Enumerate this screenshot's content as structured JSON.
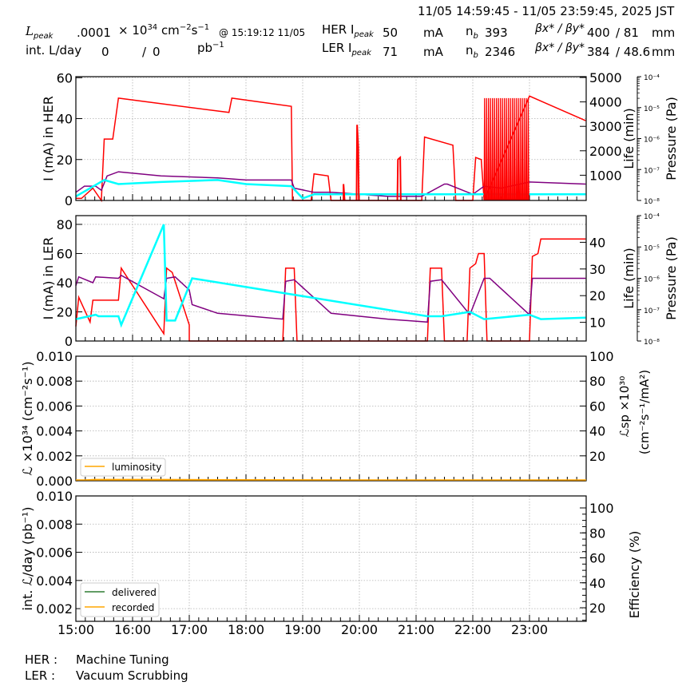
{
  "header": {
    "time_range": "11/05 14:59:45 - 11/05 23:59:45, 2025 JST",
    "lpeak_label": "L",
    "lpeak_sub": "peak",
    "lpeak_value": ".0001",
    "lpeak_unit_prefix": "× 10",
    "lpeak_unit_exp": "34",
    "lpeak_unit_cm": " cm",
    "lpeak_unit_cm_exp": "−2",
    "lpeak_unit_s": "s",
    "lpeak_unit_s_exp": "−1",
    "lpeak_time": "@ 15:19:12 11/05",
    "intl_label": "int. L/day",
    "intl_delivered": "0",
    "intl_sep": "/",
    "intl_recorded": "0",
    "intl_unit": "pb",
    "intl_unit_exp": "−1",
    "her": {
      "label": "HER I",
      "sub": "peak",
      "ipeak": "50",
      "unit": "mA",
      "nb_label": "n",
      "nb_sub": "b",
      "nb": "393",
      "beta_label": "βx* / βy*",
      "beta_x": "400",
      "beta_y": "/ 81",
      "beta_unit": "mm"
    },
    "ler": {
      "label": "LER I",
      "sub": "peak",
      "ipeak": "71",
      "unit": "mA",
      "nb_label": "n",
      "nb_sub": "b",
      "nb": "2346",
      "beta_label": "βx* / βy*",
      "beta_x": "384",
      "beta_y": "/ 48.6",
      "beta_unit": "mm"
    }
  },
  "footer": {
    "her_label": "HER :",
    "her_status": "Machine Tuning",
    "ler_label": "LER :",
    "ler_status": "Vacuum Scrubbing"
  },
  "colors": {
    "current": "#ff0000",
    "life": "#800080",
    "pressure": "#00ffff",
    "luminosity": "#ffa500",
    "delivered": "#2e7d32",
    "recorded": "#ffa500",
    "grid": "#b0b0b0"
  },
  "chart_data": [
    {
      "type": "line",
      "title": "HER",
      "x_ticks": [
        "15:00",
        "16:00",
        "17:00",
        "18:00",
        "19:00",
        "20:00",
        "21:00",
        "22:00",
        "23:00"
      ],
      "ylabel": "I (mA) in HER",
      "ylim": [
        0,
        60
      ],
      "yticks": [
        0,
        20,
        40,
        60
      ],
      "y2label": "Life (min)",
      "y2ticks": [
        1000,
        2000,
        3000,
        4000,
        5000
      ],
      "y3label": "Pressure (Pa)",
      "y3ticks": [
        "10^-8",
        "10^-7",
        "10^-6",
        "10^-5",
        "10^-4"
      ],
      "grid": true,
      "series": [
        {
          "name": "current",
          "color": "#ff0000",
          "x": [
            15.0,
            15.1,
            15.3,
            15.45,
            15.5,
            15.65,
            15.75,
            17.7,
            17.75,
            18.8,
            18.82,
            19.15,
            19.2,
            19.45,
            19.5,
            20.0,
            20.0,
            21.1,
            21.15,
            21.65,
            21.7,
            22.0,
            22.05,
            22.15,
            22.2,
            23.0,
            23.99
          ],
          "y": [
            1,
            1,
            6,
            0,
            30,
            30,
            50,
            43,
            50,
            46,
            0,
            0,
            13,
            12,
            0,
            0,
            0,
            0,
            31,
            27,
            0,
            0,
            21,
            20,
            0,
            51,
            39
          ]
        },
        {
          "name": "life",
          "color": "#800080",
          "x": [
            15.0,
            15.15,
            15.35,
            15.45,
            15.55,
            15.75,
            16.5,
            17.5,
            18.0,
            18.8,
            18.85,
            19.2,
            19.5,
            20.0,
            20.5,
            21.1,
            21.5,
            21.55,
            22.0,
            22.2,
            22.5,
            23.0,
            23.99
          ],
          "y": [
            4,
            7,
            7,
            5,
            12,
            14,
            12,
            11,
            10,
            10,
            6,
            4,
            4,
            3,
            2,
            2,
            8,
            8,
            3,
            7,
            6,
            9,
            8
          ]
        },
        {
          "name": "pressure",
          "color": "#00ffff",
          "x": [
            15.0,
            15.5,
            15.75,
            16.5,
            17.5,
            18.0,
            18.8,
            19.0,
            19.2,
            20.0,
            21.0,
            21.5,
            22.0,
            22.5,
            23.0,
            23.99
          ],
          "y": [
            2,
            10,
            8,
            9,
            10,
            8,
            7,
            1,
            3,
            3,
            3,
            3,
            3,
            3,
            3,
            3
          ]
        }
      ]
    },
    {
      "type": "line",
      "title": "LER",
      "ylabel": "I (mA) in LER",
      "ylim": [
        0,
        86
      ],
      "yticks": [
        0,
        20,
        40,
        60,
        80
      ],
      "y2label": "Life (min)",
      "y2ticks": [
        10,
        20,
        30,
        40
      ],
      "y3label": "Pressure (Pa)",
      "y3ticks": [
        "10^-8",
        "10^-7",
        "10^-6",
        "10^-5",
        "10^-4"
      ],
      "grid": true,
      "series": [
        {
          "name": "current",
          "color": "#ff0000",
          "x": [
            15.0,
            15.05,
            15.25,
            15.3,
            15.75,
            15.8,
            16.55,
            16.6,
            16.7,
            17.0,
            17.0,
            18.65,
            18.7,
            18.85,
            18.9,
            21.2,
            21.25,
            21.45,
            21.5,
            21.9,
            21.95,
            22.05,
            22.1,
            22.2,
            22.25,
            23.0,
            23.05,
            23.15,
            23.2,
            23.99
          ],
          "y": [
            10,
            30,
            13,
            28,
            28,
            50,
            5,
            50,
            47,
            11,
            0,
            0,
            50,
            50,
            0,
            0,
            50,
            50,
            0,
            0,
            50,
            53,
            60,
            60,
            0,
            0,
            58,
            60,
            70,
            70
          ]
        },
        {
          "name": "life",
          "color": "#800080",
          "x": [
            15.0,
            15.05,
            15.3,
            15.35,
            15.75,
            15.8,
            16.55,
            16.6,
            16.75,
            17.0,
            17.05,
            17.5,
            18.65,
            18.7,
            18.85,
            19.5,
            20.5,
            21.2,
            21.25,
            21.45,
            21.95,
            22.2,
            22.3,
            23.0,
            23.05,
            23.99
          ],
          "y": [
            38,
            44,
            40,
            44,
            43,
            45,
            29,
            43,
            44,
            35,
            25,
            19,
            15,
            41,
            42,
            19,
            15,
            13,
            41,
            42,
            18,
            43,
            43,
            18,
            43,
            43
          ]
        },
        {
          "name": "pressure",
          "color": "#00ffff",
          "x": [
            15.0,
            15.35,
            15.4,
            15.75,
            15.8,
            16.55,
            16.6,
            16.75,
            17.05,
            21.2,
            21.45,
            21.95,
            22.2,
            23.0,
            23.2,
            23.99
          ],
          "y": [
            15,
            18,
            17,
            17,
            11,
            80,
            14,
            14,
            43,
            17,
            17,
            20,
            15,
            18,
            15,
            16
          ]
        }
      ]
    },
    {
      "type": "line",
      "ylabel": "L ×10^34 (cm^-2 s^-1)",
      "ylim": [
        0,
        0.01
      ],
      "yticks": [
        0.0,
        0.002,
        0.004,
        0.006,
        0.008,
        0.01
      ],
      "y2label": "Lsp ×10^30 (cm^-2 s^-1 / mA^2)",
      "y2ticks": [
        20,
        40,
        60,
        80,
        100
      ],
      "legend": [
        "luminosity"
      ],
      "legend_position": "lower left",
      "grid": true,
      "series": [
        {
          "name": "luminosity",
          "color": "#ffa500",
          "x": [
            15.0,
            15.32,
            16.42,
            23.99
          ],
          "y": [
            0.0,
            0.0001,
            0.0001,
            0.0
          ]
        }
      ]
    },
    {
      "type": "line",
      "ylabel": "int. L/day (pb^-1)",
      "ylim": [
        0.001,
        0.01
      ],
      "yticks": [
        0.002,
        0.004,
        0.006,
        0.008,
        0.01
      ],
      "y2label": "Efficiency (%)",
      "y2ticks": [
        20,
        40,
        60,
        80,
        100
      ],
      "xlabels": [
        "15:00",
        "16:00",
        "17:00",
        "18:00",
        "19:00",
        "20:00",
        "21:00",
        "22:00",
        "23:00"
      ],
      "legend": [
        "delivered",
        "recorded"
      ],
      "legend_position": "lower left",
      "grid": true,
      "series": [
        {
          "name": "delivered",
          "color": "#2e7d32",
          "x": [],
          "y": []
        },
        {
          "name": "recorded",
          "color": "#ffa500",
          "x": [],
          "y": []
        }
      ]
    }
  ]
}
